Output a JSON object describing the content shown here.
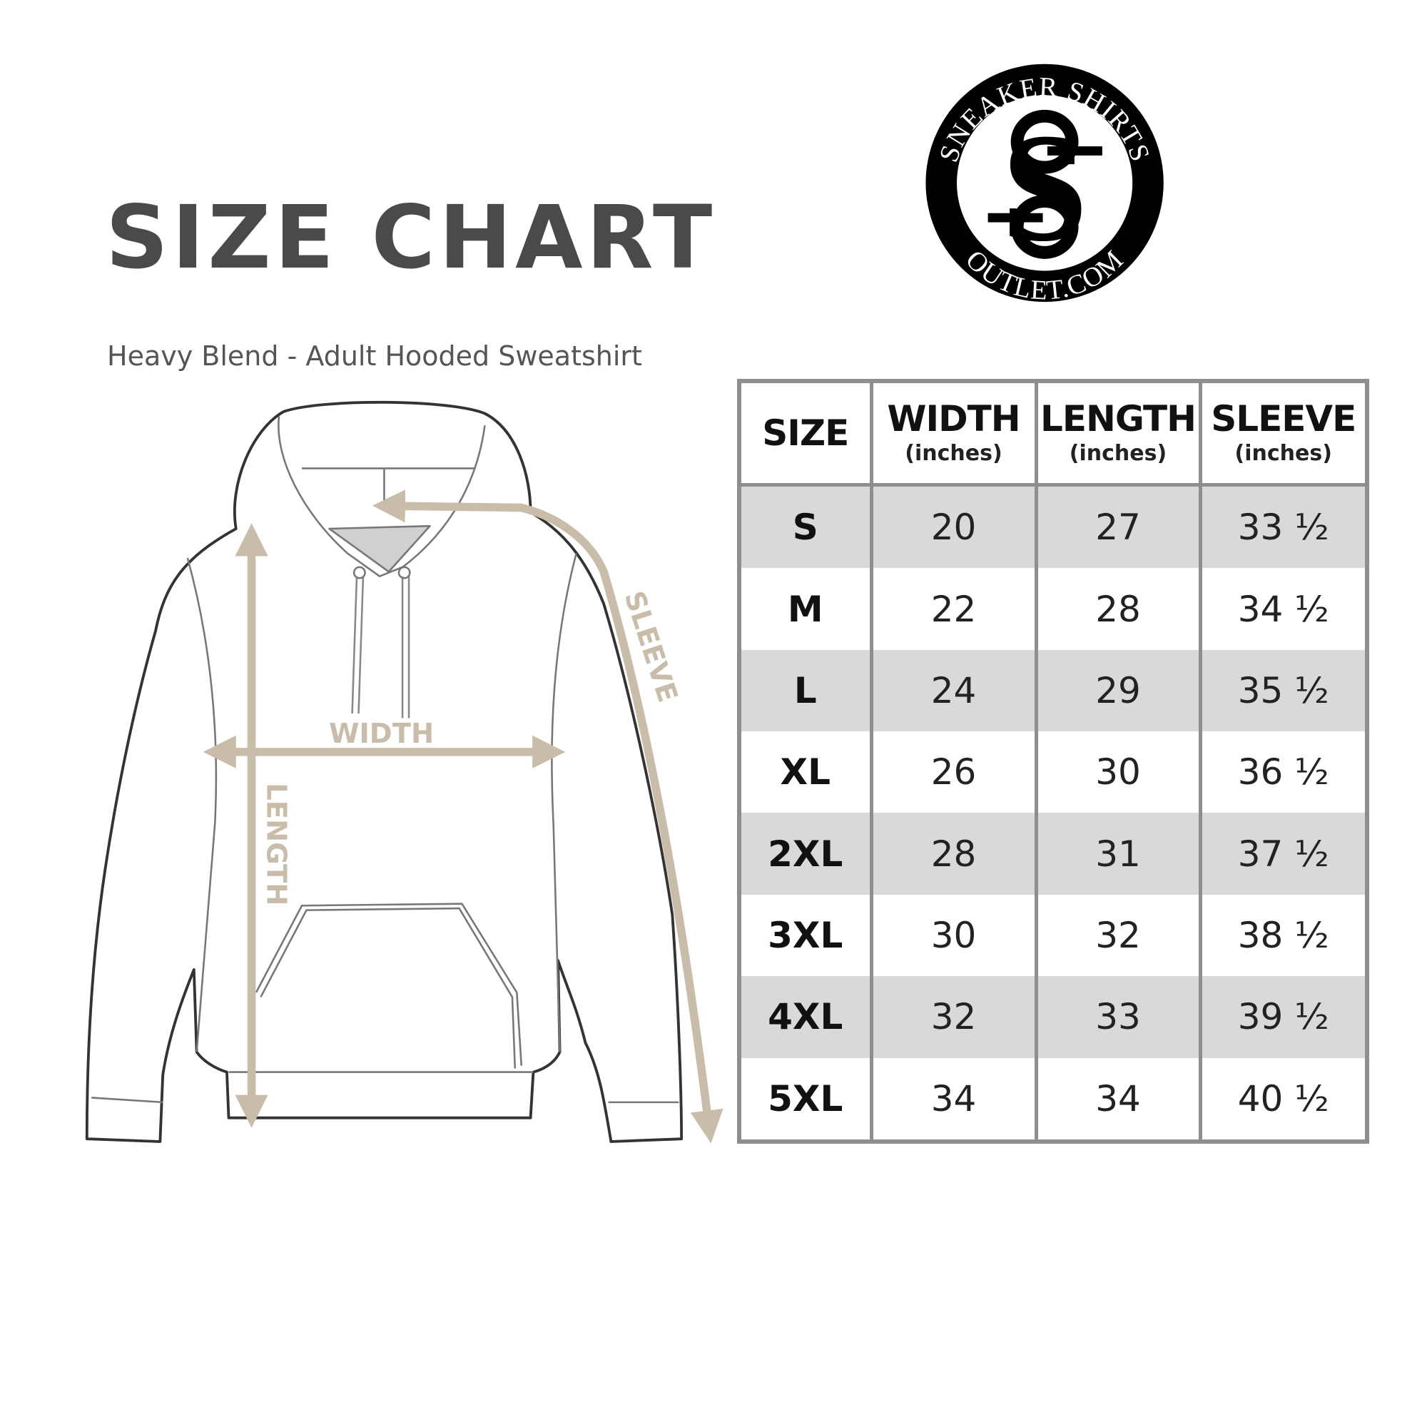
{
  "title": "SIZE CHART",
  "subtitle": "Heavy Blend - Adult Hooded Sweatshirt",
  "logo": {
    "top_text": "SNEAKER SHIRTS",
    "bottom_text": "OUTLET.COM",
    "monogram": "SS"
  },
  "diagram": {
    "width_label": "WIDTH",
    "length_label": "LENGTH",
    "sleeve_label": "SLEEVE",
    "arrow_color": "#c9bda9"
  },
  "table": {
    "headers": [
      {
        "label": "SIZE",
        "unit": ""
      },
      {
        "label": "WIDTH",
        "unit": "(inches)"
      },
      {
        "label": "LENGTH",
        "unit": "(inches)"
      },
      {
        "label": "SLEEVE",
        "unit": "(inches)"
      }
    ],
    "rows": [
      [
        "S",
        "20",
        "27",
        "33 ½"
      ],
      [
        "M",
        "22",
        "28",
        "34 ½"
      ],
      [
        "L",
        "24",
        "29",
        "35 ½"
      ],
      [
        "XL",
        "26",
        "30",
        "36 ½"
      ],
      [
        "2XL",
        "28",
        "31",
        "37 ½"
      ],
      [
        "3XL",
        "30",
        "32",
        "38 ½"
      ],
      [
        "4XL",
        "32",
        "33",
        "39 ½"
      ],
      [
        "5XL",
        "34",
        "34",
        "40 ½"
      ]
    ],
    "shade_color": "#d9d9d9",
    "border_color": "#8e8e8e"
  }
}
